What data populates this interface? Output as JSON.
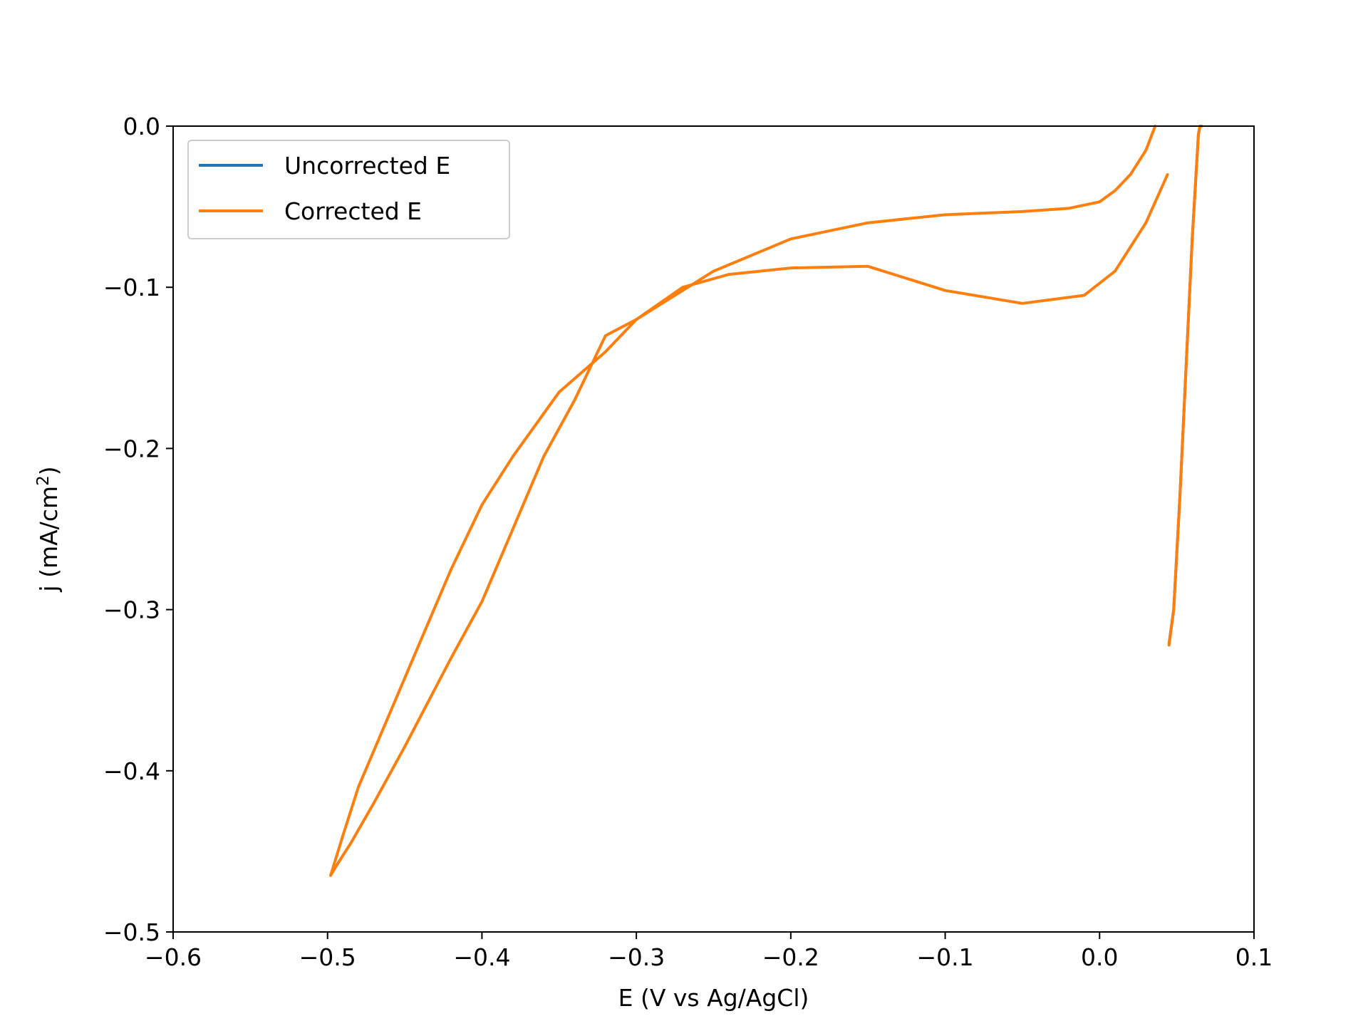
{
  "chart_data": {
    "type": "line",
    "xlabel": "E (V vs Ag/AgCl)",
    "ylabel": "j (mA/cm",
    "ylabel_sup": "2",
    "ylabel_close": ")",
    "xlim": [
      -0.6,
      0.1
    ],
    "ylim": [
      -0.5,
      0.0
    ],
    "xticks": [
      -0.6,
      -0.5,
      -0.4,
      -0.3,
      -0.2,
      -0.1,
      0.0,
      0.1
    ],
    "xtick_labels": [
      "−0.6",
      "−0.5",
      "−0.4",
      "−0.3",
      "−0.2",
      "−0.1",
      "0.0",
      "0.1"
    ],
    "yticks": [
      0.0,
      -0.1,
      -0.2,
      -0.3,
      -0.4,
      -0.5
    ],
    "ytick_labels": [
      "0.0",
      "−0.1",
      "−0.2",
      "−0.3",
      "−0.4",
      "−0.5"
    ],
    "grid": false,
    "legend_position": "top-left",
    "series": [
      {
        "name": "Uncorrected E",
        "color": "#1f77b4",
        "x": [
          0.045,
          0.048,
          0.052,
          0.056,
          0.06,
          0.064,
          0.065,
          0.066
        ],
        "y": [
          -0.321,
          -0.3,
          -0.23,
          -0.15,
          -0.07,
          -0.005,
          0.0,
          0.0
        ]
      },
      {
        "name": "Corrected E",
        "color": "#ff7f0e",
        "x": [
          0.036,
          0.03,
          0.02,
          0.01,
          0.0,
          -0.02,
          -0.05,
          -0.1,
          -0.15,
          -0.2,
          -0.25,
          -0.3,
          -0.32,
          -0.35,
          -0.38,
          -0.4,
          -0.42,
          -0.44,
          -0.46,
          -0.48,
          -0.49,
          -0.498,
          -0.495,
          -0.485,
          -0.47,
          -0.45,
          -0.42,
          -0.4,
          -0.38,
          -0.36,
          -0.34,
          -0.32,
          -0.3,
          -0.27,
          -0.24,
          -0.2,
          -0.15,
          -0.1,
          -0.05,
          -0.01,
          0.01,
          0.03,
          0.044
        ],
        "y": [
          0.0,
          -0.015,
          -0.03,
          -0.04,
          -0.047,
          -0.051,
          -0.053,
          -0.055,
          -0.06,
          -0.07,
          -0.09,
          -0.12,
          -0.14,
          -0.165,
          -0.205,
          -0.235,
          -0.275,
          -0.32,
          -0.365,
          -0.41,
          -0.44,
          -0.465,
          -0.46,
          -0.445,
          -0.42,
          -0.385,
          -0.33,
          -0.295,
          -0.25,
          -0.205,
          -0.17,
          -0.13,
          -0.12,
          -0.1,
          -0.092,
          -0.088,
          -0.087,
          -0.102,
          -0.11,
          -0.105,
          -0.09,
          -0.06,
          -0.03
        ]
      },
      {
        "name": "",
        "color": "#ff7f0e",
        "x": [
          0.045,
          0.048,
          0.052,
          0.056,
          0.06,
          0.064,
          0.065,
          0.066
        ],
        "y": [
          -0.322,
          -0.3,
          -0.23,
          -0.15,
          -0.07,
          -0.005,
          0.0,
          0.0
        ]
      }
    ]
  }
}
